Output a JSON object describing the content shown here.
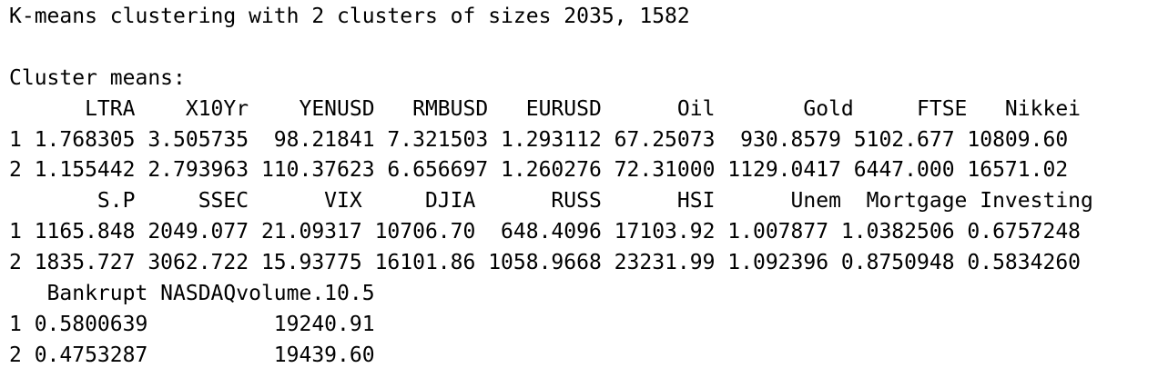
{
  "console": {
    "header": "K-means clustering with 2 clusters of sizes 2035, 1582",
    "means_label": "Cluster means:",
    "block1": {
      "header": "      LTRA    X10Yr    YENUSD   RMBUSD   EURUSD      Oil       Gold     FTSE   Nikkei",
      "rows": [
        "1 1.768305 3.505735  98.21841 7.321503 1.293112 67.25073  930.8579 5102.677 10809.60",
        "2 1.155442 2.793963 110.37623 6.656697 1.260276 72.31000 1129.0417 6447.000 16571.02"
      ]
    },
    "block2": {
      "header": "       S.P     SSEC      VIX     DJIA      RUSS      HSI      Unem  Mortgage Investing",
      "rows": [
        "1 1165.848 2049.077 21.09317 10706.70  648.4096 17103.92 1.007877 1.0382506 0.6757248",
        "2 1835.727 3062.722 15.93775 16101.86 1058.9668 23231.99 1.092396 0.8750948 0.5834260"
      ]
    },
    "block3": {
      "header": "   Bankrupt NASDAQvolume.10.5",
      "rows": [
        "1 0.5800639          19240.91",
        "2 0.4753287          19439.60"
      ]
    }
  }
}
